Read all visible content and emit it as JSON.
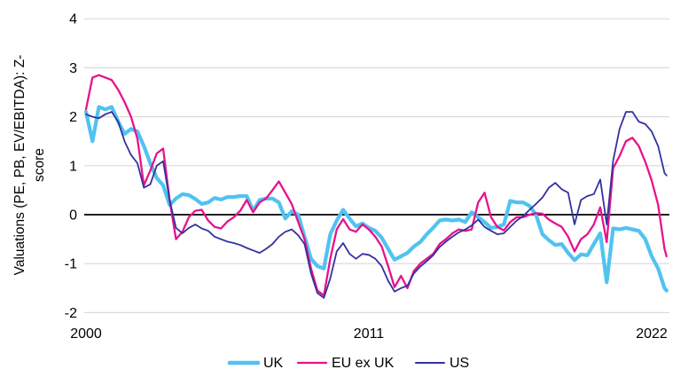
{
  "chart_data": {
    "type": "line",
    "title": "",
    "xlabel": "",
    "ylabel": "Valuations (PE, PB, EV/EBITDA): Z-score",
    "ylabel_line1": "Valuations (PE, PB, EV/EBITDA): Z-",
    "ylabel_line2": "score",
    "x_ticks": [
      2000,
      2011,
      2022
    ],
    "y_ticks": [
      4,
      3,
      2,
      1,
      0,
      -1,
      -2
    ],
    "ylim": [
      -2,
      4
    ],
    "xlim": [
      2000,
      2022.6
    ],
    "grid": "horizontal",
    "zero_line": true,
    "legend_position": "bottom",
    "colors": {
      "gridline": "#D9D9D9",
      "zero_line": "#000000",
      "text": "#000000",
      "background": "#FFFFFF"
    },
    "x": [
      2000,
      2000.25,
      2000.5,
      2000.75,
      2001,
      2001.25,
      2001.5,
      2001.75,
      2002,
      2002.25,
      2002.5,
      2002.75,
      2003,
      2003.25,
      2003.5,
      2003.75,
      2004,
      2004.25,
      2004.5,
      2004.75,
      2005,
      2005.25,
      2005.5,
      2005.75,
      2006,
      2006.25,
      2006.5,
      2006.75,
      2007,
      2007.25,
      2007.5,
      2007.75,
      2008,
      2008.25,
      2008.5,
      2008.75,
      2009,
      2009.25,
      2009.5,
      2009.75,
      2010,
      2010.25,
      2010.5,
      2010.75,
      2011,
      2011.25,
      2011.5,
      2011.75,
      2012,
      2012.25,
      2012.5,
      2012.75,
      2013,
      2013.25,
      2013.5,
      2013.75,
      2014,
      2014.25,
      2014.5,
      2014.75,
      2015,
      2015.25,
      2015.5,
      2015.75,
      2016,
      2016.25,
      2016.5,
      2016.75,
      2017,
      2017.25,
      2017.5,
      2017.75,
      2018,
      2018.25,
      2018.5,
      2018.75,
      2019,
      2019.25,
      2019.5,
      2019.75,
      2020,
      2020.25,
      2020.5,
      2020.75,
      2021,
      2021.25,
      2021.5,
      2021.75,
      2022,
      2022.25,
      2022.5,
      2022.58
    ],
    "series": [
      {
        "name": "UK",
        "color": "#50C3F0",
        "width": 4.2,
        "values": [
          2.1,
          1.5,
          2.2,
          2.15,
          2.2,
          1.9,
          1.65,
          1.75,
          1.7,
          1.4,
          1.05,
          0.75,
          0.6,
          0.2,
          0.33,
          0.42,
          0.4,
          0.32,
          0.22,
          0.25,
          0.34,
          0.31,
          0.36,
          0.36,
          0.38,
          0.38,
          0.08,
          0.3,
          0.33,
          0.33,
          0.25,
          -0.08,
          0.07,
          0.0,
          -0.45,
          -0.9,
          -1.05,
          -1.1,
          -0.4,
          -0.12,
          0.1,
          -0.08,
          -0.24,
          -0.18,
          -0.27,
          -0.33,
          -0.47,
          -0.7,
          -0.92,
          -0.85,
          -0.78,
          -0.65,
          -0.56,
          -0.4,
          -0.27,
          -0.12,
          -0.1,
          -0.12,
          -0.1,
          -0.15,
          0.05,
          -0.05,
          -0.15,
          -0.27,
          -0.25,
          -0.2,
          0.28,
          0.25,
          0.25,
          0.18,
          0.0,
          -0.4,
          -0.52,
          -0.62,
          -0.6,
          -0.78,
          -0.93,
          -0.81,
          -0.83,
          -0.6,
          -0.38,
          -1.38,
          -0.28,
          -0.3,
          -0.27,
          -0.3,
          -0.33,
          -0.5,
          -0.85,
          -1.1,
          -1.5,
          -1.55
        ]
      },
      {
        "name": "EU ex UK",
        "color": "#E8128C",
        "width": 2.3,
        "values": [
          2.15,
          2.8,
          2.85,
          2.8,
          2.75,
          2.55,
          2.3,
          2.0,
          1.55,
          0.6,
          0.9,
          1.25,
          1.35,
          0.3,
          -0.5,
          -0.35,
          -0.05,
          0.08,
          0.1,
          -0.12,
          -0.25,
          -0.28,
          -0.14,
          -0.05,
          0.08,
          0.3,
          0.05,
          0.25,
          0.33,
          0.5,
          0.68,
          0.45,
          0.22,
          -0.15,
          -0.5,
          -1.1,
          -1.55,
          -1.65,
          -0.9,
          -0.3,
          -0.09,
          -0.3,
          -0.35,
          -0.2,
          -0.3,
          -0.45,
          -0.65,
          -1.05,
          -1.48,
          -1.25,
          -1.5,
          -1.15,
          -1.0,
          -0.9,
          -0.8,
          -0.6,
          -0.5,
          -0.38,
          -0.3,
          -0.33,
          -0.3,
          0.25,
          0.45,
          -0.05,
          -0.25,
          -0.32,
          -0.15,
          -0.05,
          -0.05,
          0.0,
          0.03,
          0.02,
          -0.1,
          -0.18,
          -0.25,
          -0.45,
          -0.75,
          -0.5,
          -0.4,
          -0.2,
          0.15,
          -0.56,
          0.95,
          1.2,
          1.5,
          1.57,
          1.4,
          1.08,
          0.7,
          0.2,
          -0.7,
          -0.85
        ]
      },
      {
        "name": "US",
        "color": "#3232A0",
        "width": 1.8,
        "values": [
          2.05,
          2.0,
          1.97,
          2.05,
          2.1,
          1.9,
          1.5,
          1.22,
          1.05,
          0.55,
          0.62,
          1.0,
          1.09,
          0.3,
          -0.27,
          -0.38,
          -0.27,
          -0.2,
          -0.28,
          -0.33,
          -0.45,
          -0.5,
          -0.55,
          -0.58,
          -0.62,
          -0.68,
          -0.73,
          -0.78,
          -0.7,
          -0.6,
          -0.45,
          -0.35,
          -0.3,
          -0.42,
          -0.6,
          -1.2,
          -1.6,
          -1.7,
          -1.3,
          -0.75,
          -0.58,
          -0.8,
          -0.9,
          -0.8,
          -0.82,
          -0.9,
          -1.05,
          -1.35,
          -1.57,
          -1.5,
          -1.45,
          -1.2,
          -1.06,
          -0.95,
          -0.83,
          -0.66,
          -0.55,
          -0.45,
          -0.36,
          -0.3,
          -0.22,
          -0.1,
          -0.25,
          -0.33,
          -0.4,
          -0.38,
          -0.25,
          -0.12,
          -0.03,
          0.1,
          0.22,
          0.35,
          0.55,
          0.65,
          0.52,
          0.45,
          -0.2,
          0.3,
          0.38,
          0.42,
          0.72,
          -0.2,
          1.1,
          1.75,
          2.1,
          2.1,
          1.9,
          1.85,
          1.7,
          1.4,
          0.85,
          0.8
        ]
      }
    ]
  }
}
